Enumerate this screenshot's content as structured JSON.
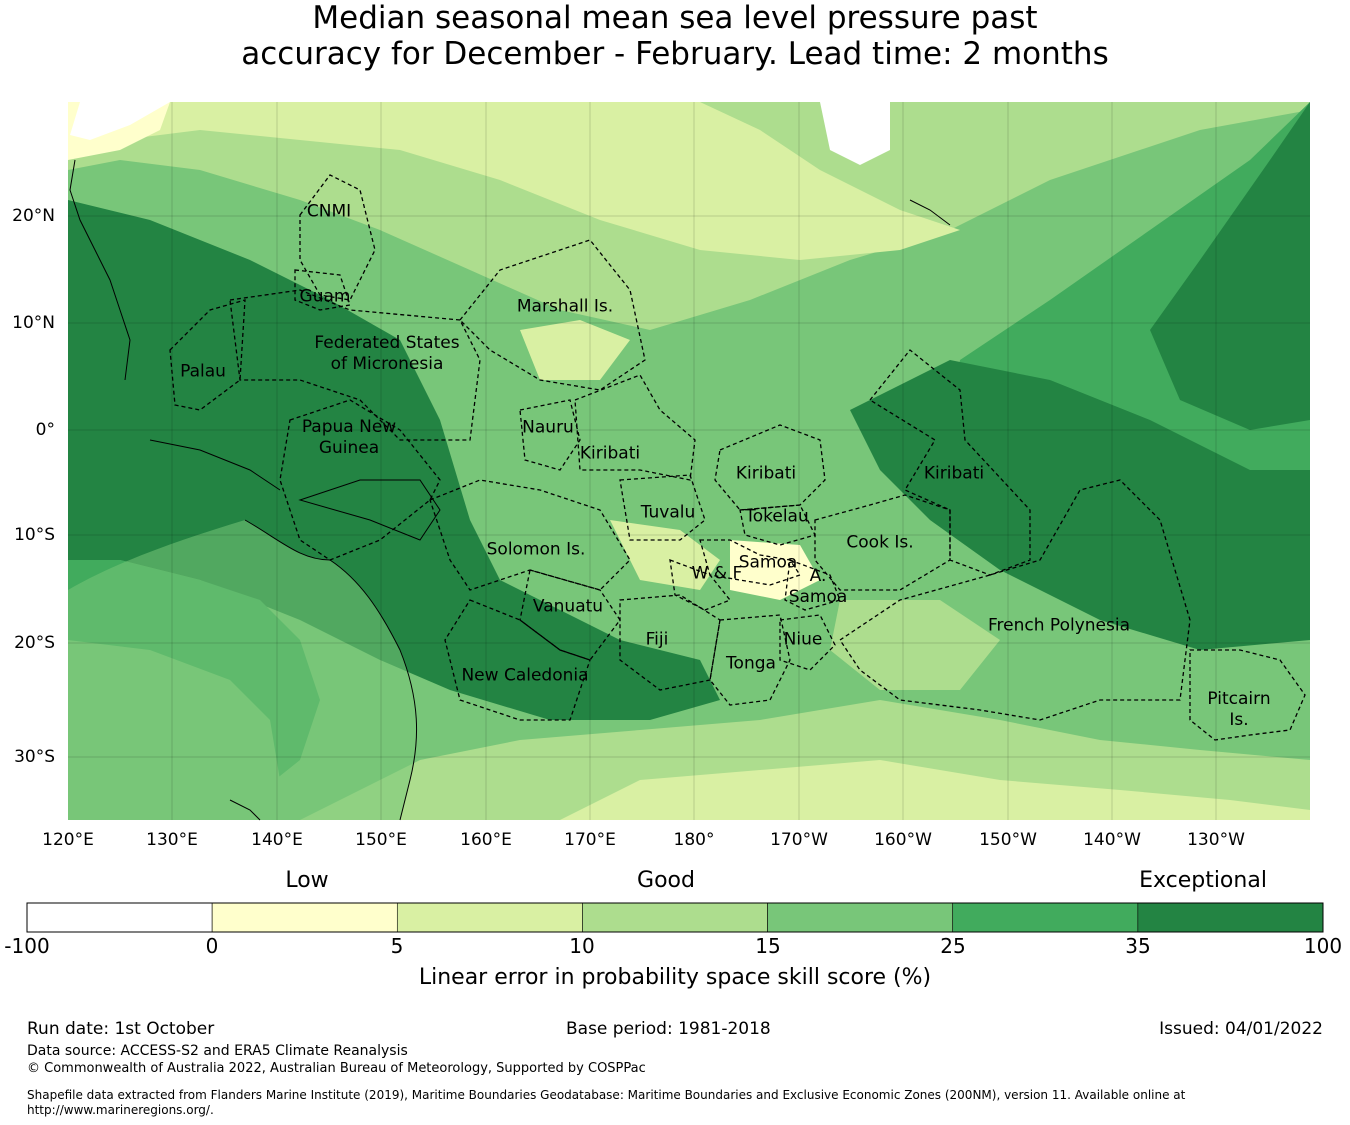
{
  "title": {
    "line1": "Median seasonal mean sea level pressure past",
    "line2": "accuracy for December - February. Lead time: 2 months"
  },
  "map": {
    "lon_ticks": [
      "120°E",
      "130°E",
      "140°E",
      "150°E",
      "160°E",
      "170°E",
      "180°",
      "170°W",
      "160°W",
      "150°W",
      "140°W",
      "130°W"
    ],
    "lat_ticks": [
      "20°N",
      "10°N",
      "0°",
      "10°S",
      "20°S",
      "30°S"
    ],
    "regions": [
      {
        "id": "cnmi",
        "label": "CNMI"
      },
      {
        "id": "guam",
        "label": "Guam"
      },
      {
        "id": "marshall",
        "label": "Marshall Is."
      },
      {
        "id": "fsm",
        "label": "Federated States\nof Micronesia"
      },
      {
        "id": "palau",
        "label": "Palau"
      },
      {
        "id": "png",
        "label": "Papua New\nGuinea"
      },
      {
        "id": "nauru",
        "label": "Nauru"
      },
      {
        "id": "kiribati-w",
        "label": "Kiribati"
      },
      {
        "id": "kiribati-c",
        "label": "Kiribati"
      },
      {
        "id": "kiribati-e",
        "label": "Kiribati"
      },
      {
        "id": "tuvalu",
        "label": "Tuvalu"
      },
      {
        "id": "tokelau",
        "label": "Tokelau"
      },
      {
        "id": "cook",
        "label": "Cook Is."
      },
      {
        "id": "solomon",
        "label": "Solomon Is."
      },
      {
        "id": "samoa",
        "label": "Samoa"
      },
      {
        "id": "wf",
        "label": "W & F"
      },
      {
        "id": "asamoa",
        "label": "A.\nSamoa"
      },
      {
        "id": "vanuatu",
        "label": "Vanuatu"
      },
      {
        "id": "fiji",
        "label": "Fiji"
      },
      {
        "id": "niue",
        "label": "Niue"
      },
      {
        "id": "tonga",
        "label": "Tonga"
      },
      {
        "id": "newcal",
        "label": "New Caledonia"
      },
      {
        "id": "frenchpoly",
        "label": "French Polynesia"
      },
      {
        "id": "pitcairn",
        "label": "Pitcairn\nIs."
      }
    ]
  },
  "colorbar": {
    "categories": [
      "Low",
      "Good",
      "Exceptional"
    ],
    "ticks": [
      "-100",
      "0",
      "5",
      "10",
      "15",
      "25",
      "35",
      "100"
    ],
    "colors": [
      "#ffffff",
      "#ffffcc",
      "#d9f0a3",
      "#addd8e",
      "#78c679",
      "#41ab5d",
      "#238443"
    ],
    "label": "Linear error in probability space skill score (%)"
  },
  "footer": {
    "run_date": "Run date: 1st October",
    "base_period": "Base period: 1981-2018",
    "issued": "Issued: 04/01/2022",
    "data_source": "Data source: ACCESS-S2 and ERA5 Climate Reanalysis",
    "copyright": "© Commonwealth of Australia 2022, Australian Bureau of Meteorology, Supported by COSPPac",
    "shapefile": "Shapefile data extracted from Flanders Marine Institute (2019), Maritime Boundaries Geodatabase: Maritime Boundaries and Exclusive Economic Zones (200NM), version 11. Available online at http://www.marineregions.org/."
  }
}
